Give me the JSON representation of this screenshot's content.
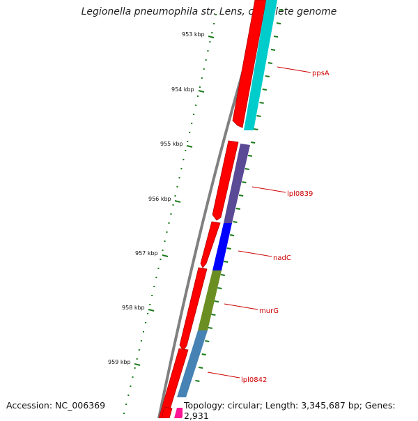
{
  "title": "Legionella pneumophila str. Lens, complete genome",
  "accession": "Accession: NC_006369",
  "summary": "Topology: circular; Length: 3,345,687 bp; Genes: 2,931",
  "colors": {
    "backbone": "#808080",
    "tick": "#1a7a1a",
    "forward": "#ff0000",
    "label": "#cc0000",
    "ppsA": "#00cccc",
    "lpl0839": "#5a4a96",
    "nadC": "#0000ff",
    "murG": "#6b8e23",
    "lpl0842": "#4682b4",
    "next_gene": "#ff1493"
  },
  "ticks": [
    {
      "label": "953 kbp"
    },
    {
      "label": "954 kbp"
    },
    {
      "label": "955 kbp"
    },
    {
      "label": "956 kbp"
    },
    {
      "label": "957 kbp"
    },
    {
      "label": "958 kbp"
    },
    {
      "label": "959 kbp"
    }
  ],
  "genes": [
    {
      "name": "ppsA"
    },
    {
      "name": "lpl0839"
    },
    {
      "name": "nadC"
    },
    {
      "name": "murG"
    },
    {
      "name": "lpl0842"
    }
  ]
}
